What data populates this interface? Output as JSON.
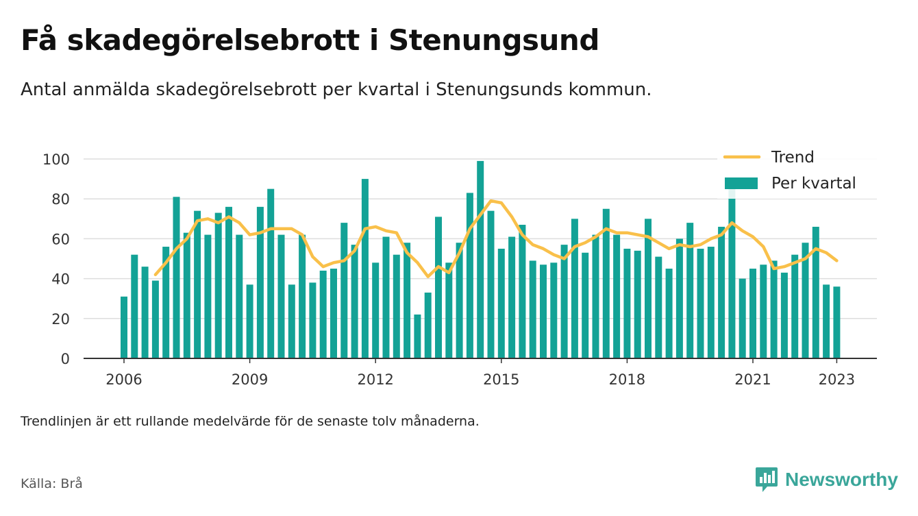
{
  "title": "Få skadegörelsebrott i Stenungsund",
  "subtitle": "Antal anmälda skadegörelsebrott per kvartal i Stenungsunds kommun.",
  "note": "Trendlinjen är ett rullande medelvärde för de senaste tolv månaderna.",
  "source": "Källa: Brå",
  "brand": {
    "name": "Newsworthy",
    "icon": "newsworthy-logo-icon"
  },
  "colors": {
    "bar": "#13a296",
    "trend": "#f9c04a",
    "grid": "#dddddd",
    "axis": "#333333"
  },
  "chart_data": {
    "type": "bar",
    "start": "2006 Q1",
    "xticks": [
      "2006",
      "2009",
      "2012",
      "2015",
      "2018",
      "2021",
      "2023"
    ],
    "yticks": [
      0,
      20,
      40,
      60,
      80,
      100
    ],
    "ylim": [
      0,
      100
    ],
    "grid": true,
    "legend_position": "top-right",
    "series": [
      {
        "name": "Per kvartal",
        "type": "bar",
        "values": [
          31,
          52,
          46,
          39,
          56,
          81,
          63,
          74,
          62,
          73,
          76,
          62,
          37,
          76,
          85,
          62,
          37,
          62,
          38,
          44,
          45,
          68,
          57,
          90,
          48,
          61,
          52,
          58,
          22,
          33,
          71,
          48,
          58,
          83,
          99,
          74,
          55,
          61,
          67,
          49,
          47,
          48,
          57,
          70,
          53,
          62,
          75,
          62,
          55,
          54,
          70,
          51,
          45,
          60,
          68,
          55,
          56,
          66,
          85,
          40,
          45,
          47,
          49,
          43,
          52,
          58,
          66,
          37,
          36
        ]
      },
      {
        "name": "Trend",
        "type": "line",
        "values": [
          null,
          null,
          null,
          42,
          48,
          55,
          60,
          69,
          70,
          68,
          71,
          68,
          62,
          63,
          65,
          65,
          65,
          62,
          51,
          46,
          48,
          49,
          54,
          65,
          66,
          64,
          63,
          53,
          48,
          41,
          46,
          43,
          53,
          65,
          72,
          79,
          78,
          71,
          62,
          57,
          55,
          52,
          50,
          56,
          58,
          61,
          65,
          63,
          63,
          62,
          61,
          58,
          55,
          57,
          56,
          57,
          60,
          62,
          68,
          64,
          61,
          56,
          45,
          46,
          48,
          50,
          55,
          53,
          49
        ]
      }
    ]
  }
}
